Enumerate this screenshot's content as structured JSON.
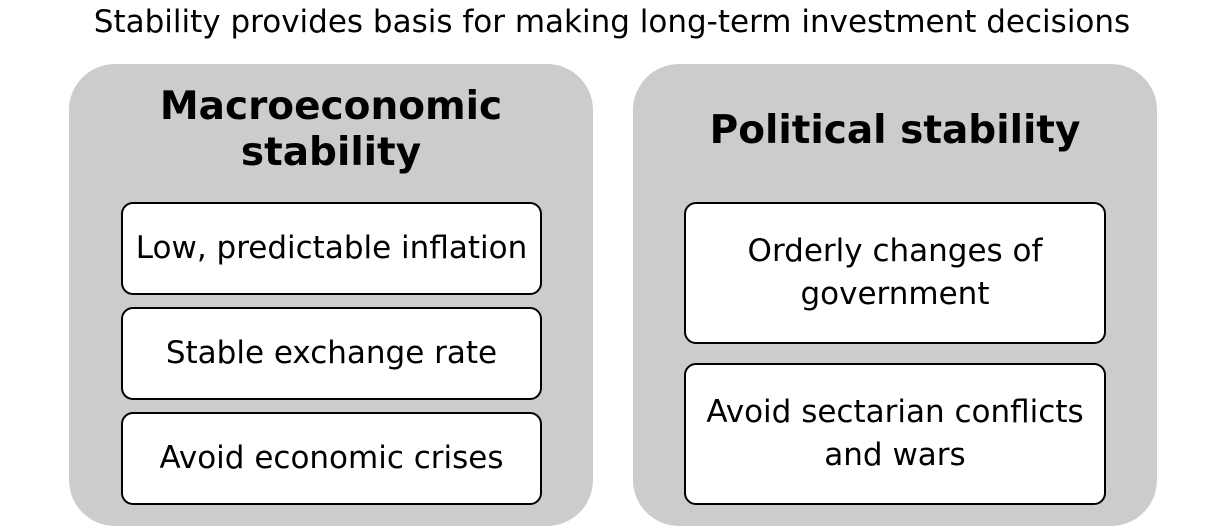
{
  "title": "Stability provides basis for making long-term investment decisions",
  "panels": [
    {
      "heading": "Macroeconomic stability",
      "items": [
        "Low, predictable inflation",
        "Stable exchange rate",
        "Avoid economic crises"
      ]
    },
    {
      "heading": "Political stability",
      "items": [
        "Orderly changes of government",
        "Avoid sectarian conflicts and wars"
      ]
    }
  ],
  "colors": {
    "panel_fill": "#cccccc",
    "box_fill": "#ffffff",
    "box_border": "#000000",
    "text": "#000000"
  }
}
